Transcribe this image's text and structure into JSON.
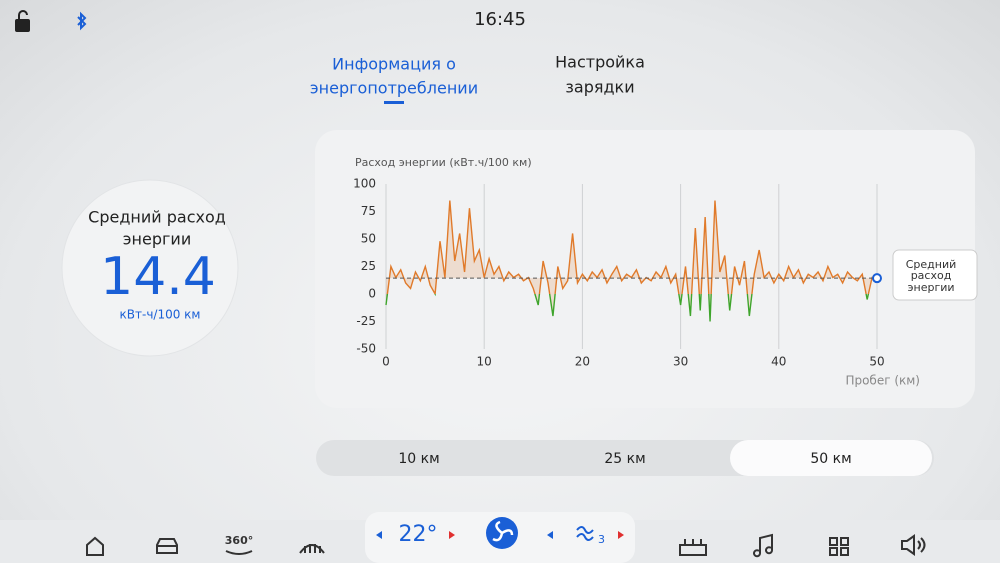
{
  "status_bar": {
    "time": "16:45"
  },
  "tabs": [
    {
      "lines": [
        "Информация о",
        "энергопотреблении"
      ],
      "active": true
    },
    {
      "lines": [
        "Настройка",
        "зарядки"
      ],
      "active": false
    }
  ],
  "summary": {
    "label_lines": [
      "Средний расход",
      "энергии"
    ],
    "unit": "кВт-ч/100 км"
  },
  "chart_data": {
    "type": "line",
    "title": "Расход энергии (кВт.ч/100 км)",
    "x_label": "Пробег (км)",
    "average": 14.4,
    "average_label_lines": [
      "Средний",
      "расход",
      "энергии"
    ],
    "xlim": [
      0,
      50
    ],
    "ylim": [
      -50,
      100
    ],
    "xticks": [
      0,
      10,
      20,
      30,
      40,
      50
    ],
    "yticks": [
      -50,
      -25,
      0,
      25,
      50,
      75,
      100
    ],
    "grid": true,
    "series": [
      {
        "color": "#e07a2a",
        "negative_color": "#3fa52c",
        "x": [
          0,
          0.5,
          1,
          1.5,
          2,
          2.5,
          3,
          3.5,
          4,
          4.5,
          5,
          5.5,
          6,
          6.5,
          7,
          7.5,
          8,
          8.5,
          9,
          9.5,
          10,
          10.5,
          11,
          11.5,
          12,
          12.5,
          13,
          13.5,
          14,
          14.5,
          15,
          15.5,
          16,
          16.5,
          17,
          17.5,
          18,
          18.5,
          19,
          19.5,
          20,
          20.5,
          21,
          21.5,
          22,
          22.5,
          23,
          23.5,
          24,
          24.5,
          25,
          25.5,
          26,
          26.5,
          27,
          27.5,
          28,
          28.5,
          29,
          29.5,
          30,
          30.5,
          31,
          31.5,
          32,
          32.5,
          33,
          33.5,
          34,
          34.5,
          35,
          35.5,
          36,
          36.5,
          37,
          37.5,
          38,
          38.5,
          39,
          39.5,
          40,
          40.5,
          41,
          41.5,
          42,
          42.5,
          43,
          43.5,
          44,
          44.5,
          45,
          45.5,
          46,
          46.5,
          47,
          47.5,
          48,
          48.5,
          49,
          49.5,
          50
        ],
        "values": [
          -10,
          25,
          15,
          22,
          10,
          5,
          20,
          12,
          25,
          8,
          0,
          48,
          15,
          85,
          30,
          55,
          20,
          78,
          30,
          40,
          15,
          32,
          18,
          25,
          12,
          20,
          15,
          18,
          12,
          15,
          5,
          -10,
          30,
          10,
          -20,
          25,
          5,
          12,
          55,
          10,
          18,
          12,
          20,
          15,
          22,
          10,
          18,
          25,
          12,
          18,
          15,
          22,
          10,
          15,
          12,
          20,
          15,
          25,
          10,
          18,
          -10,
          25,
          -20,
          60,
          -15,
          70,
          -25,
          85,
          20,
          35,
          -15,
          25,
          8,
          30,
          -20,
          18,
          40,
          15,
          20,
          10,
          18,
          12,
          25,
          15,
          22,
          10,
          18,
          15,
          20,
          12,
          25,
          15,
          18,
          10,
          20,
          15,
          12,
          18,
          -5,
          15,
          14
        ]
      }
    ]
  },
  "range_buttons": {
    "labels": [
      "10 км",
      "25 км",
      "50 км"
    ],
    "selected": 2
  },
  "dock": {
    "label_360": "360°",
    "temperature": "22°",
    "fan_level": "3"
  }
}
